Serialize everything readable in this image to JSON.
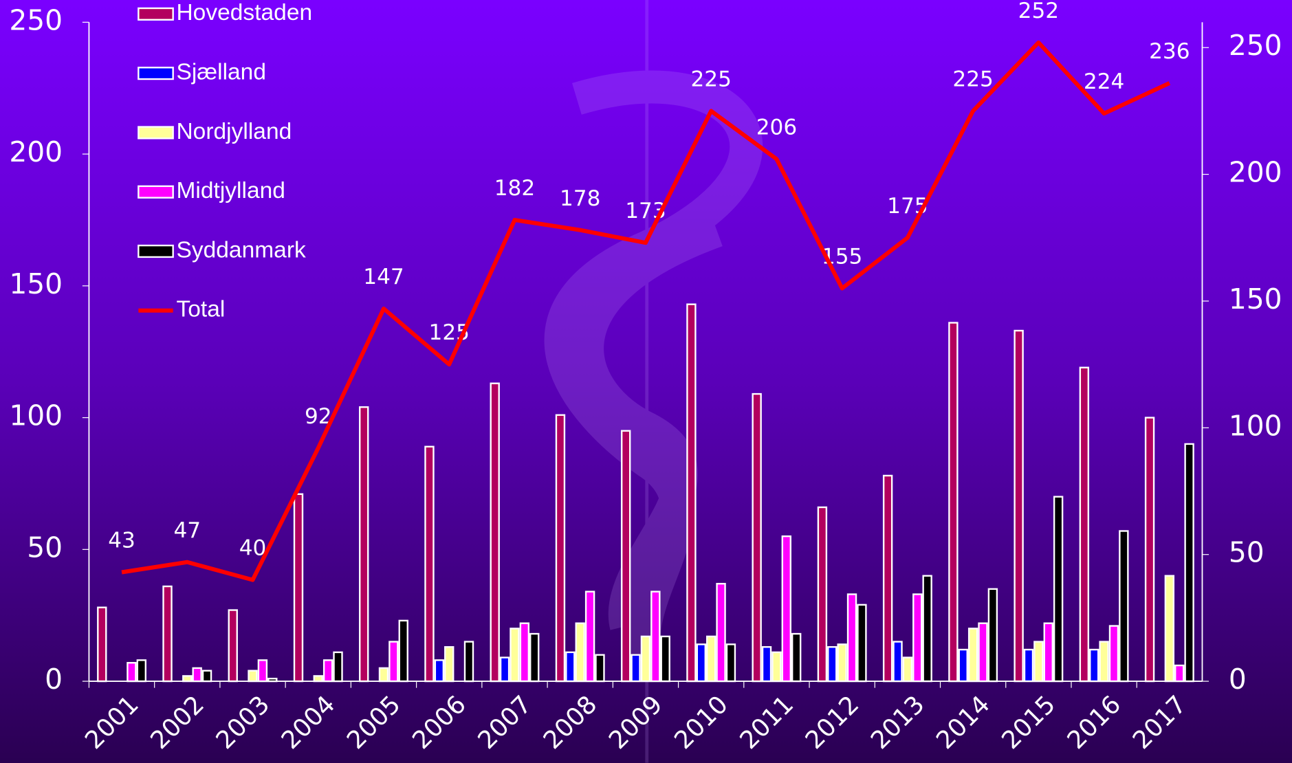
{
  "chart_data": {
    "type": "bar",
    "categories": [
      "2001",
      "2002",
      "2003",
      "2004",
      "2005",
      "2006",
      "2007",
      "2008",
      "2009",
      "2010",
      "2011",
      "2012",
      "2013",
      "2014",
      "2015",
      "2016",
      "2017"
    ],
    "series": [
      {
        "name": "Hovedstaden",
        "color": "#b3005e",
        "values": [
          28,
          36,
          27,
          71,
          104,
          89,
          113,
          101,
          95,
          143,
          109,
          66,
          78,
          136,
          133,
          119,
          100
        ]
      },
      {
        "name": "Sjælland",
        "color": "#0000ff",
        "values": [
          0,
          0,
          0,
          0,
          0,
          8,
          9,
          11,
          10,
          14,
          13,
          13,
          15,
          12,
          12,
          12,
          0
        ]
      },
      {
        "name": "Nordjylland",
        "color": "#ffff99",
        "values": [
          0,
          2,
          4,
          2,
          5,
          13,
          20,
          22,
          17,
          17,
          11,
          14,
          9,
          20,
          15,
          15,
          40
        ]
      },
      {
        "name": "Midtjylland",
        "color": "#ff00ff",
        "values": [
          7,
          5,
          8,
          8,
          15,
          0,
          22,
          34,
          34,
          37,
          55,
          33,
          33,
          22,
          22,
          21,
          6
        ]
      },
      {
        "name": "Syddanmark",
        "color": "#000000",
        "values": [
          8,
          4,
          1,
          11,
          23,
          15,
          18,
          10,
          17,
          14,
          18,
          29,
          40,
          35,
          70,
          57,
          90
        ]
      },
      {
        "name": "Total",
        "color": "#ff0000",
        "type": "line",
        "axis": "y2",
        "values": [
          43,
          47,
          40,
          92,
          147,
          125,
          182,
          178,
          173,
          225,
          206,
          155,
          175,
          225,
          252,
          224,
          236
        ]
      }
    ],
    "ylim": [
      0,
      250
    ],
    "yticks": [
      0,
      50,
      100,
      150,
      200,
      250
    ],
    "y2lim": [
      0,
      260
    ],
    "y2ticks": [
      0,
      50,
      100,
      150,
      200,
      250
    ]
  }
}
